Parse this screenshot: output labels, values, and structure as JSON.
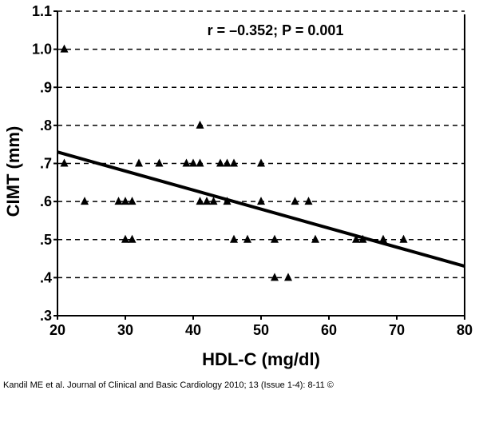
{
  "chart_data": {
    "type": "scatter",
    "xlabel": "HDL-C (mg/dl)",
    "ylabel": "CIMT (mm)",
    "xlim": [
      20,
      80
    ],
    "ylim": [
      0.3,
      1.1
    ],
    "xticks": [
      "20",
      "30",
      "40",
      "50",
      "60",
      "70",
      "80"
    ],
    "yticks": [
      ".3",
      ".4",
      ".5",
      ".6",
      ".7",
      ".8",
      ".9",
      "1.0",
      "1.1"
    ],
    "grid": "horizontal dashed",
    "annotation": "r = –0.352; P = 0.001",
    "marker": "triangle",
    "points": [
      [
        21,
        1.0
      ],
      [
        41,
        0.8
      ],
      [
        21,
        0.7
      ],
      [
        32,
        0.7
      ],
      [
        35,
        0.7
      ],
      [
        39,
        0.7
      ],
      [
        40,
        0.7
      ],
      [
        41,
        0.7
      ],
      [
        44,
        0.7
      ],
      [
        45,
        0.7
      ],
      [
        46,
        0.7
      ],
      [
        50,
        0.7
      ],
      [
        24,
        0.6
      ],
      [
        29,
        0.6
      ],
      [
        30,
        0.6
      ],
      [
        31,
        0.6
      ],
      [
        41,
        0.6
      ],
      [
        42,
        0.6
      ],
      [
        43,
        0.6
      ],
      [
        45,
        0.6
      ],
      [
        50,
        0.6
      ],
      [
        55,
        0.6
      ],
      [
        57,
        0.6
      ],
      [
        30,
        0.5
      ],
      [
        31,
        0.5
      ],
      [
        46,
        0.5
      ],
      [
        48,
        0.5
      ],
      [
        52,
        0.5
      ],
      [
        58,
        0.5
      ],
      [
        64,
        0.5
      ],
      [
        65,
        0.5
      ],
      [
        68,
        0.5
      ],
      [
        71,
        0.5
      ],
      [
        52,
        0.4
      ],
      [
        54,
        0.4
      ]
    ],
    "fit_line": {
      "x": [
        20,
        80
      ],
      "y": [
        0.73,
        0.43
      ]
    }
  },
  "caption": "Kandil ME et al. Journal of Clinical and Basic Cardiology 2010; 13 (Issue 1-4): 8-11 ©"
}
